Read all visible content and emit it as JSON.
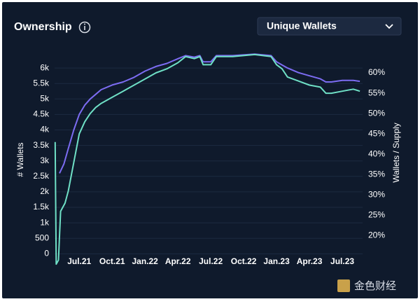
{
  "header": {
    "title": "Ownership",
    "dropdown": "Unique Wallets"
  },
  "watermark": "金色财经",
  "chart_data": {
    "type": "line",
    "ylabel": "# Wallets",
    "y2label": "Wallets / Supply",
    "xlim": [
      3.75,
      31.85
    ],
    "xticks": [
      {
        "value": 6,
        "label": "Jul.21"
      },
      {
        "value": 9,
        "label": "Oct.21"
      },
      {
        "value": 12,
        "label": "Jan.22"
      },
      {
        "value": 15,
        "label": "Apr.22"
      },
      {
        "value": 18,
        "label": "Jul.22"
      },
      {
        "value": 21,
        "label": "Oct.22"
      },
      {
        "value": 24,
        "label": "Jan.23"
      },
      {
        "value": 27,
        "label": "Apr.23"
      },
      {
        "value": 30,
        "label": "Jul.23"
      }
    ],
    "ylim": [
      -400,
      6500
    ],
    "yticks": [
      0,
      500,
      {
        "value": 1000,
        "label": "1k"
      },
      {
        "value": 1500,
        "label": "1.5k"
      },
      {
        "value": 2000,
        "label": "2k"
      },
      {
        "value": 2500,
        "label": "2.5k"
      },
      {
        "value": 3000,
        "label": "3k"
      },
      {
        "value": 3500,
        "label": "3.5k"
      },
      {
        "value": 4000,
        "label": "4k"
      },
      {
        "value": 4500,
        "label": "4.5k"
      },
      {
        "value": 5000,
        "label": "5k"
      },
      {
        "value": 5500,
        "label": "5.5k"
      },
      {
        "value": 6000,
        "label": "6k"
      }
    ],
    "y2lim": [
      12.5,
      65
    ],
    "y2ticks": [
      {
        "value": 20,
        "label": "20%"
      },
      {
        "value": 25,
        "label": "25%"
      },
      {
        "value": 30,
        "label": "30%"
      },
      {
        "value": 35,
        "label": "35%"
      },
      {
        "value": 40,
        "label": "40%"
      },
      {
        "value": 45,
        "label": "45%"
      },
      {
        "value": 50,
        "label": "50%"
      },
      {
        "value": 55,
        "label": "55%"
      },
      {
        "value": 60,
        "label": "60%"
      }
    ],
    "grid": true,
    "series": [
      {
        "color": "#7c6cf2",
        "x": [
          4.2,
          4.6,
          5.0,
          5.5,
          6,
          6.5,
          7,
          7.5,
          8,
          9,
          10,
          11,
          12,
          13,
          14,
          15,
          15.7,
          16.5,
          17,
          17.3,
          18,
          18.5,
          20,
          22,
          23.5,
          24,
          24.5,
          25,
          26,
          27,
          28,
          28.5,
          29,
          30,
          31,
          31.6
        ],
        "values": [
          2600,
          2900,
          3400,
          4000,
          4500,
          4800,
          5000,
          5150,
          5300,
          5450,
          5550,
          5700,
          5900,
          6050,
          6150,
          6300,
          6400,
          6350,
          6400,
          6200,
          6200,
          6400,
          6400,
          6450,
          6400,
          6200,
          6100,
          6000,
          5850,
          5750,
          5650,
          5550,
          5550,
          5600,
          5600,
          5570
        ]
      },
      {
        "color": "#6fe0c6",
        "axis": "y2",
        "x": [
          3.8,
          3.9,
          4.1,
          4.3,
          4.7,
          5.0,
          5.5,
          6,
          6.5,
          7,
          7.5,
          8,
          9,
          10,
          11,
          12,
          13,
          14,
          15,
          15.7,
          16.5,
          17,
          17.3,
          18,
          18.5,
          20,
          22,
          23.5,
          24,
          24.5,
          25,
          26,
          27,
          28,
          28.5,
          29,
          30,
          31,
          31.6
        ],
        "values": [
          43,
          13,
          14,
          26,
          28,
          31,
          38,
          45,
          48,
          50,
          51.5,
          52.5,
          54,
          55.5,
          57,
          58.5,
          60,
          61,
          62.5,
          64,
          63.5,
          64,
          62,
          62,
          64,
          64,
          64.5,
          64,
          62,
          61,
          59,
          58,
          57,
          56.5,
          55,
          55,
          55.5,
          56,
          55.5
        ]
      }
    ]
  }
}
